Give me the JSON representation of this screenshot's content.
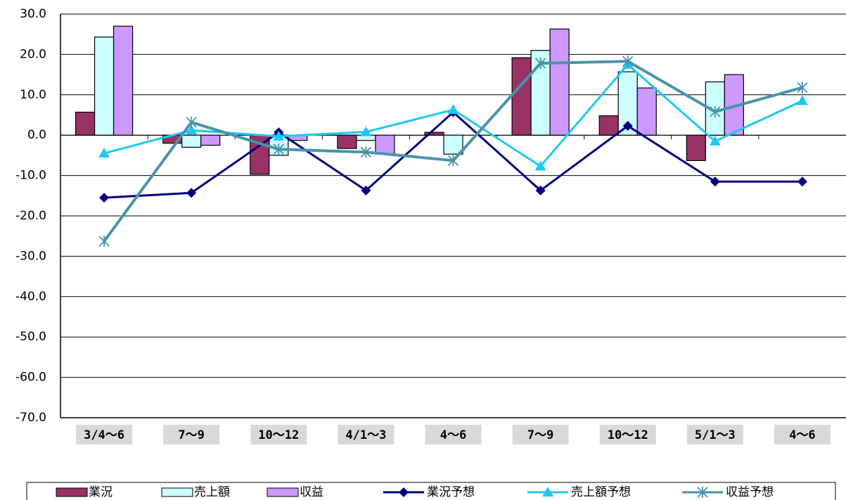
{
  "chart_data": {
    "type": "combo",
    "categories": [
      "3/4〜6",
      "7〜9",
      "10〜12",
      "4/1〜3",
      "4〜6",
      "7〜9",
      "10〜12",
      "5/1〜3",
      "4〜6"
    ],
    "series": [
      {
        "name": "業況",
        "type": "bar",
        "color": "#993366",
        "values": [
          5.7,
          -2.0,
          -9.7,
          -3.3,
          0.7,
          19.2,
          4.8,
          -6.3,
          null
        ]
      },
      {
        "name": "売上額",
        "type": "bar",
        "color": "#ccffff",
        "values": [
          24.3,
          -3.0,
          -5.0,
          -1.3,
          -4.7,
          21.0,
          15.7,
          13.2,
          null
        ]
      },
      {
        "name": "収益",
        "type": "bar",
        "color": "#cc99ff",
        "values": [
          27.0,
          -2.5,
          -1.3,
          -4.7,
          0,
          26.3,
          11.7,
          15.0,
          null
        ]
      },
      {
        "name": "業況予想",
        "type": "line",
        "marker": "diamond",
        "color": "#000080",
        "values": [
          -15.5,
          -14.3,
          0.7,
          -13.7,
          5.7,
          -13.7,
          2.3,
          -11.5,
          -11.5
        ]
      },
      {
        "name": "売上額予想",
        "type": "line",
        "marker": "triangle",
        "color": "#1ec8f5",
        "values": [
          -4.5,
          1.2,
          -0.3,
          0.8,
          6.3,
          -7.7,
          17.5,
          -1.5,
          8.5
        ]
      },
      {
        "name": "収益予想",
        "type": "line",
        "marker": "star",
        "color": "#4a93ab",
        "values": [
          -26.3,
          3.2,
          -3.5,
          -4.2,
          -6.3,
          17.8,
          18.3,
          5.8,
          11.8
        ]
      }
    ],
    "ylim": [
      -70,
      30
    ],
    "yticks": [
      {
        "value": -70,
        "label": "-70.0"
      },
      {
        "value": -60,
        "label": "-60.0"
      },
      {
        "value": -50,
        "label": "-50.0"
      },
      {
        "value": -40,
        "label": "-40.0"
      },
      {
        "value": -30,
        "label": "-30.0"
      },
      {
        "value": -20,
        "label": "-20.0"
      },
      {
        "value": -10,
        "label": "-10.0"
      },
      {
        "value": 0,
        "label": "0.0"
      },
      {
        "value": 10,
        "label": "10.0"
      },
      {
        "value": 20,
        "label": "20.0"
      },
      {
        "value": 30,
        "label": "30.0"
      }
    ],
    "grid": true,
    "legend": "bottom"
  }
}
